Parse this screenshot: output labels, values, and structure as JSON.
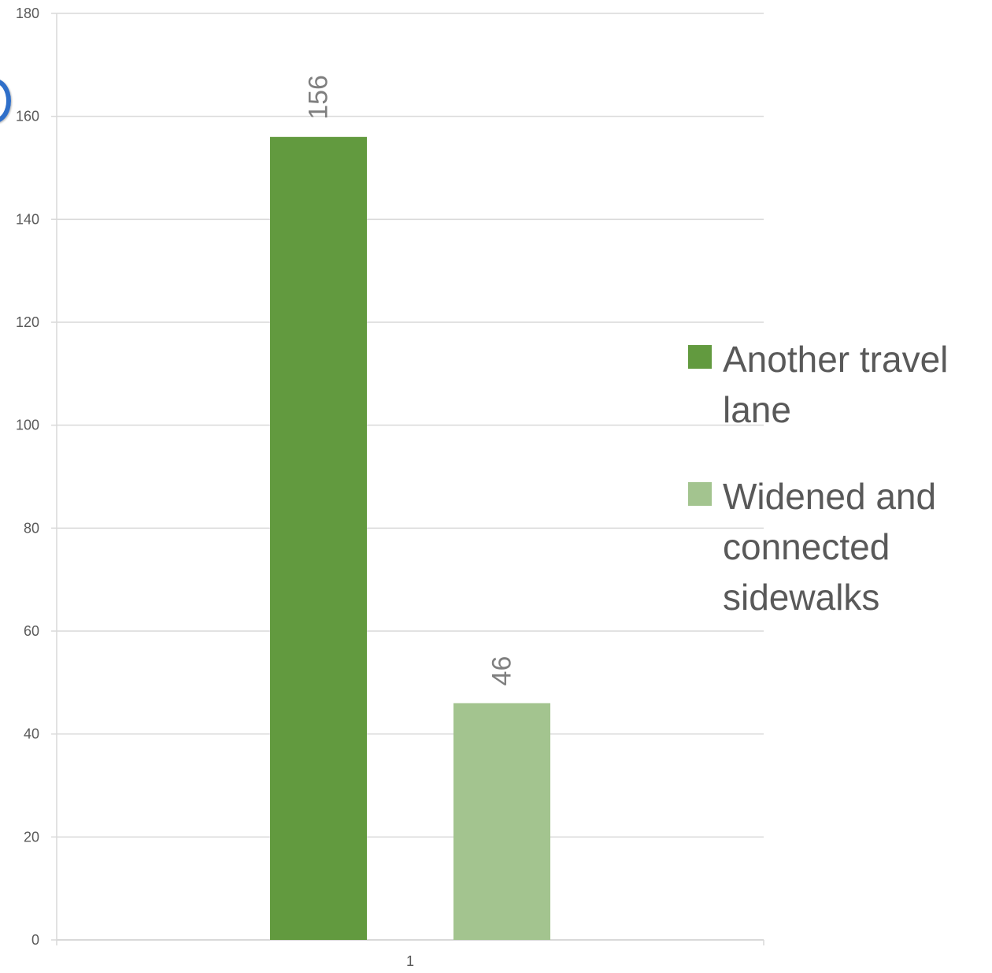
{
  "chart_data": {
    "type": "bar",
    "categories": [
      "1"
    ],
    "series": [
      {
        "name": "Another travel lane",
        "values": [
          156
        ],
        "color": "#629a3f"
      },
      {
        "name": "Widened and connected sidewalks",
        "values": [
          46
        ],
        "color": "#a3c48f"
      }
    ],
    "ylim": [
      0,
      180
    ],
    "yticks": [
      0,
      20,
      40,
      60,
      80,
      100,
      120,
      140,
      160,
      180
    ],
    "data_labels": [
      "156",
      "46"
    ],
    "grid": true,
    "legend_position": "right"
  },
  "colors": {
    "gridline": "#d9d9d9",
    "tick_text": "#595959",
    "data_label": "#7f7f7f",
    "legend_text": "#595959",
    "logo_accent": "#2f6fc9"
  },
  "icons": {
    "partial_logo": "circle-logo-icon"
  }
}
